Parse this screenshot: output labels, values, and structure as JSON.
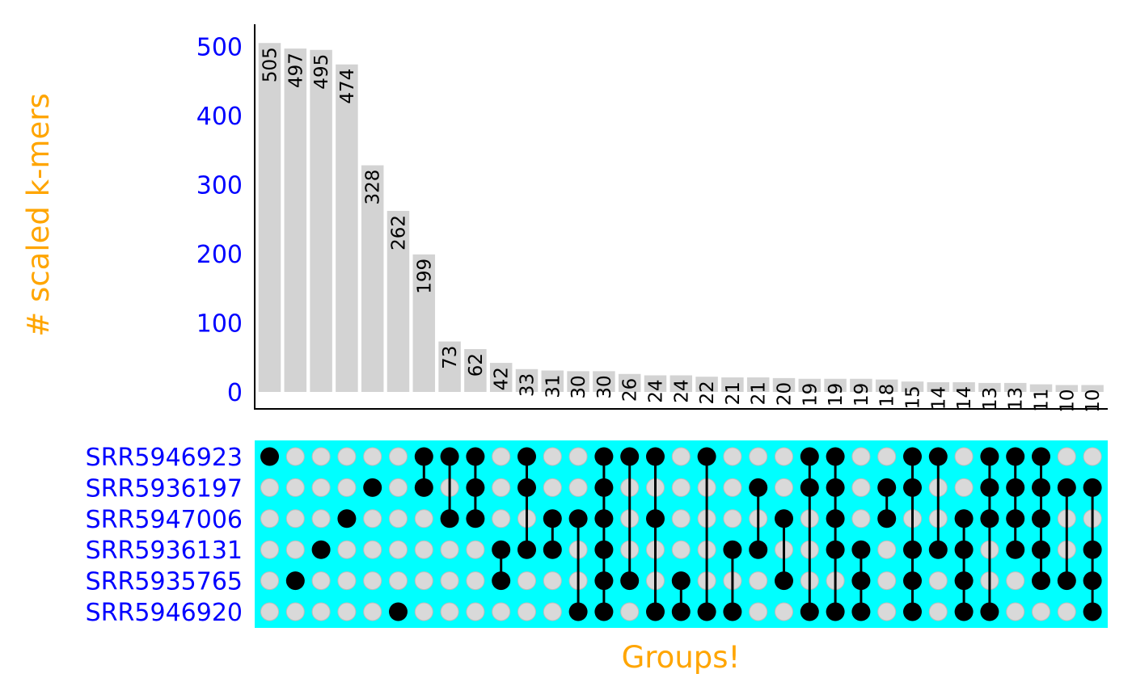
{
  "chart_data": {
    "type": "bar",
    "subtype": "upset",
    "ylabel": "# scaled k-mers",
    "xlabel": "Groups!",
    "ylim": [
      0,
      530
    ],
    "yticks": [
      0,
      100,
      200,
      300,
      400,
      500
    ],
    "values": [
      505,
      497,
      495,
      474,
      328,
      262,
      199,
      73,
      62,
      42,
      33,
      31,
      30,
      30,
      26,
      24,
      24,
      22,
      21,
      21,
      20,
      19,
      19,
      19,
      18,
      15,
      14,
      14,
      13,
      13,
      11,
      10,
      10
    ],
    "sets": [
      "SRR5946923",
      "SRR5936197",
      "SRR5947006",
      "SRR5936131",
      "SRR5935765",
      "SRR5946920"
    ],
    "intersections": [
      [
        0
      ],
      [
        4
      ],
      [
        3
      ],
      [
        2
      ],
      [
        1
      ],
      [
        5
      ],
      [
        0,
        1
      ],
      [
        0,
        2
      ],
      [
        0,
        1,
        2
      ],
      [
        3,
        4
      ],
      [
        0,
        1,
        3
      ],
      [
        2,
        3
      ],
      [
        2,
        5
      ],
      [
        0,
        1,
        2,
        3,
        4,
        5
      ],
      [
        0,
        4
      ],
      [
        0,
        2,
        5
      ],
      [
        4,
        5
      ],
      [
        0,
        5
      ],
      [
        3,
        5
      ],
      [
        1,
        3
      ],
      [
        2,
        4
      ],
      [
        0,
        1,
        5
      ],
      [
        0,
        1,
        2,
        3,
        5
      ],
      [
        3,
        4,
        5
      ],
      [
        1,
        2
      ],
      [
        0,
        1,
        3,
        4,
        5
      ],
      [
        0,
        3
      ],
      [
        2,
        3,
        4,
        5
      ],
      [
        0,
        1,
        2,
        5
      ],
      [
        0,
        1,
        2,
        3
      ],
      [
        0,
        1,
        2,
        3,
        4
      ],
      [
        1,
        4
      ],
      [
        1,
        3,
        4,
        5
      ]
    ],
    "colors": {
      "bar": "#d3d3d3",
      "matrix_background": "#00ffff",
      "dot_active": "#000000",
      "dot_inactive": "#d9d9d9",
      "tick_text": "#0000ff",
      "axis_title": "#ffa500",
      "bar_label": "#000000"
    }
  }
}
